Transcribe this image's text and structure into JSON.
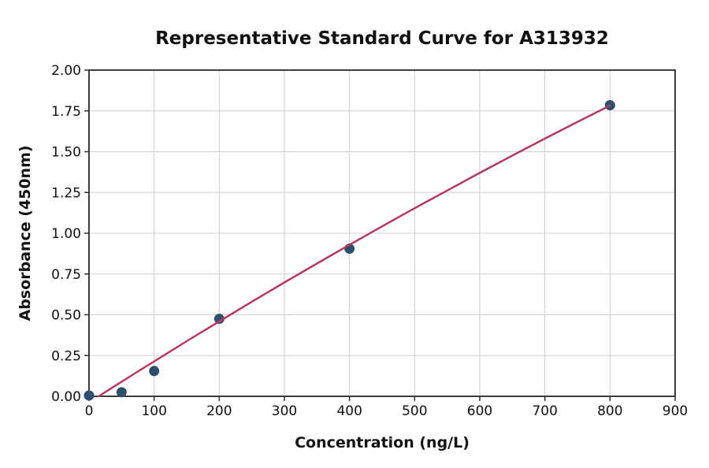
{
  "chart_data": {
    "type": "scatter",
    "title": "Representative Standard Curve for A313932",
    "xlabel": "Concentration (ng/L)",
    "ylabel": "Absorbance (450nm)",
    "xlim": [
      0,
      900
    ],
    "ylim": [
      0,
      2.0
    ],
    "xticks": [
      0,
      100,
      200,
      300,
      400,
      500,
      600,
      700,
      800,
      900
    ],
    "ytick_values": [
      0,
      0.25,
      0.5,
      0.75,
      1.0,
      1.25,
      1.5,
      1.75,
      2.0
    ],
    "ytick_labels": [
      "0.00",
      "0.25",
      "0.50",
      "0.75",
      "1.00",
      "1.25",
      "1.50",
      "1.75",
      "2.00"
    ],
    "grid": true,
    "legend": null,
    "series": [
      {
        "name": "standard-points",
        "kind": "scatter",
        "x": [
          0,
          50,
          100,
          200,
          400,
          800
        ],
        "y": [
          0.005,
          0.025,
          0.155,
          0.475,
          0.905,
          1.785
        ]
      },
      {
        "name": "fitted-curve",
        "kind": "line",
        "x": [
          15,
          25,
          50,
          75,
          100,
          125,
          150,
          175,
          200,
          250,
          300,
          350,
          400,
          450,
          500,
          550,
          600,
          650,
          700,
          750,
          800
        ],
        "y": [
          0.0,
          0.026,
          0.089,
          0.152,
          0.214,
          0.276,
          0.338,
          0.399,
          0.459,
          0.58,
          0.698,
          0.814,
          0.929,
          1.042,
          1.153,
          1.262,
          1.37,
          1.476,
          1.58,
          1.682,
          1.783
        ]
      }
    ],
    "colors": {
      "point": "#2d4e6c",
      "curve": "#b23a60",
      "grid": "#d0d0d0",
      "spine": "#3d3d3d",
      "tick": "#333333",
      "text": "#111111",
      "background": "#ffffff"
    }
  }
}
